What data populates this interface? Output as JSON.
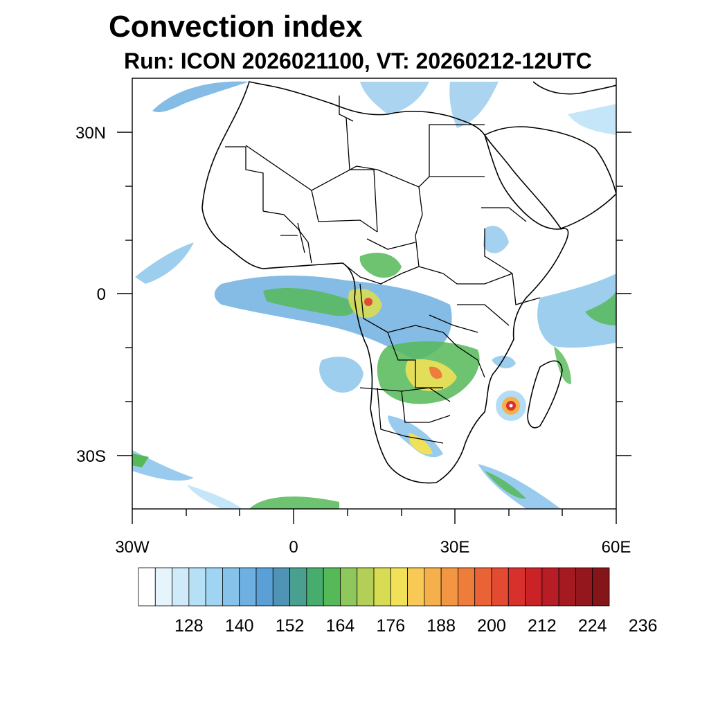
{
  "title": "Convection index",
  "subtitle": "Run: ICON 2026021100,  VT: 20260212-12UTC",
  "map": {
    "lon_range": [
      -30,
      60
    ],
    "lat_range": [
      -40,
      40
    ],
    "lon_ticks": [
      {
        "value": -30,
        "label": "30W"
      },
      {
        "value": 0,
        "label": "0"
      },
      {
        "value": 30,
        "label": "30E"
      },
      {
        "value": 60,
        "label": "60E"
      }
    ],
    "lat_ticks": [
      {
        "value": 30,
        "label": "30N"
      },
      {
        "value": 0,
        "label": "0"
      },
      {
        "value": -30,
        "label": "30S"
      }
    ],
    "features": [
      "coastlines",
      "country-borders"
    ],
    "field": "convection index"
  },
  "colorbar": {
    "colors": [
      "#ffffff",
      "#e6f4fb",
      "#cfeaf8",
      "#b6e0f6",
      "#9fd5f3",
      "#86c2ea",
      "#6fb0e2",
      "#5a9fd6",
      "#4f93b5",
      "#4aa08e",
      "#47ad6e",
      "#55b957",
      "#8ec75b",
      "#b3cf57",
      "#d8dc52",
      "#f0e158",
      "#f8ca55",
      "#f5b04b",
      "#f29643",
      "#ee7d3b",
      "#e96336",
      "#e24a31",
      "#d8302c",
      "#c92328",
      "#b61d24",
      "#a51a20",
      "#93171c",
      "#841519"
    ],
    "labels": [
      "128",
      "140",
      "152",
      "164",
      "176",
      "188",
      "200",
      "212",
      "224",
      "236"
    ]
  }
}
